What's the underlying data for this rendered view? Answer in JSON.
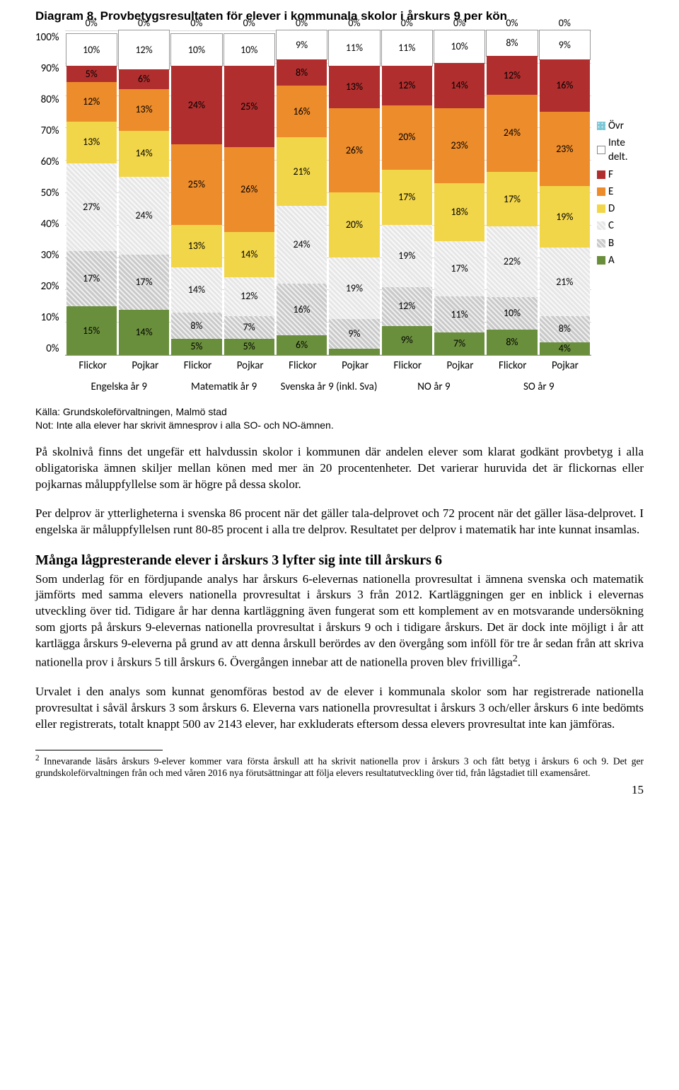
{
  "diagram": {
    "number_label": "Diagram 8.",
    "title_rest": " Provbetygsresultaten för elever i kommunala skolor i årskurs 9 per kön",
    "yaxis": [
      "100%",
      "90%",
      "80%",
      "70%",
      "60%",
      "50%",
      "40%",
      "30%",
      "20%",
      "10%",
      "0%"
    ],
    "legend": [
      {
        "label": "Övr",
        "color": "#7cc7d6",
        "pattern": "hatch-dots"
      },
      {
        "label": "Inte delt.",
        "color": "#ffffff",
        "pattern": "hatch-diag1",
        "border": "#888"
      },
      {
        "label": "F",
        "color": "#b02e2e"
      },
      {
        "label": "E",
        "color": "#ed8c2b"
      },
      {
        "label": "D",
        "color": "#f2d64a"
      },
      {
        "label": "C",
        "color": "#e6e6e6",
        "pattern": "hatch-diag1"
      },
      {
        "label": "B",
        "color": "#c9c9c9",
        "pattern": "hatch-diag1"
      },
      {
        "label": "A",
        "color": "#6a8f3c"
      }
    ],
    "grade_order": [
      "A",
      "B",
      "C",
      "D",
      "E",
      "F",
      "Inte delt.",
      "Övr"
    ],
    "grade_fill": {
      "A": {
        "color": "#6a8f3c"
      },
      "B": {
        "color": "#c9c9c9",
        "pattern": "hatch-diag1"
      },
      "C": {
        "color": "#e6e6e6",
        "pattern": "hatch-diag1"
      },
      "D": {
        "color": "#f2d64a"
      },
      "E": {
        "color": "#ed8c2b"
      },
      "F": {
        "color": "#b02e2e"
      },
      "Inte delt.": {
        "color": "#ffffff",
        "pattern": "hatch-diag1",
        "border": "#999"
      },
      "Övr": {
        "color": "#7cc7d6",
        "pattern": "hatch-dots"
      }
    },
    "subjects": [
      {
        "name": "Engelska år 9",
        "bars": [
          {
            "label": "Flickor",
            "segs": {
              "A": 15,
              "B": 17,
              "C": 27,
              "D": 13,
              "E": 12,
              "F": 5,
              "Inte delt.": 10,
              "Övr": 0
            },
            "labels": {
              "A": "15%",
              "B": "17%",
              "C": "27%",
              "D": "13%",
              "E": "12%",
              "F": "5%",
              "Inte delt.": "10%",
              "Övr": "0%"
            }
          },
          {
            "label": "Pojkar",
            "segs": {
              "A": 14,
              "B": 17,
              "C": 24,
              "D": 14,
              "E": 13,
              "F": 6,
              "Inte delt.": 12,
              "Övr": 0
            },
            "labels": {
              "A": "14%",
              "B": "17%",
              "C": "24%",
              "D": "14%",
              "E": "13%",
              "F": "6%",
              "Inte delt.": "12%",
              "Övr": "0%"
            }
          }
        ]
      },
      {
        "name": "Matematik år 9",
        "bars": [
          {
            "label": "Flickor",
            "segs": {
              "A": 5,
              "B": 8,
              "C": 14,
              "D": 13,
              "E": 25,
              "F": 24,
              "Inte delt.": 10,
              "Övr": 0
            },
            "labels": {
              "A": "5%",
              "B": "8%",
              "C": "14%",
              "D": "13%",
              "E": "25%",
              "F": "24%",
              "Inte delt.": "10%",
              "Övr": "0%"
            }
          },
          {
            "label": "Pojkar",
            "segs": {
              "A": 5,
              "B": 7,
              "C": 12,
              "D": 14,
              "E": 26,
              "F": 25,
              "Inte delt.": 10,
              "Övr": 0
            },
            "labels": {
              "A": "5%",
              "B": "7%",
              "C": "12%",
              "D": "14%",
              "E": "26%",
              "F": "25%",
              "Inte delt.": "10%",
              "Övr": "0%"
            }
          }
        ]
      },
      {
        "name": "Svenska år 9 (inkl. Sva)",
        "bars": [
          {
            "label": "Flickor",
            "segs": {
              "A": 6,
              "B": 16,
              "C": 24,
              "D": 21,
              "E": 16,
              "F": 8,
              "Inte delt.": 9,
              "Övr": 0
            },
            "labels": {
              "A": "6%",
              "B": "16%",
              "C": "24%",
              "D": "21%",
              "E": "16%",
              "F": "8%",
              "Inte delt.": "9%",
              "Övr": "0%"
            }
          },
          {
            "label": "Pojkar",
            "segs": {
              "A": 2,
              "B": 9,
              "C": 19,
              "D": 20,
              "E": 26,
              "F": 13,
              "Inte delt.": 11,
              "Övr": 0
            },
            "labels": {
              "A": "2%",
              "B": "9%",
              "C": "19%",
              "D": "20%",
              "E": "26%",
              "F": "13%",
              "Inte delt.": "11%",
              "Övr": "0%"
            }
          }
        ]
      },
      {
        "name": "NO år 9",
        "bars": [
          {
            "label": "Flickor",
            "segs": {
              "A": 9,
              "B": 12,
              "C": 19,
              "D": 17,
              "E": 20,
              "F": 12,
              "Inte delt.": 11,
              "Övr": 0
            },
            "labels": {
              "A": "9%",
              "B": "12%",
              "C": "19%",
              "D": "17%",
              "E": "20%",
              "F": "12%",
              "Inte delt.": "11%",
              "Övr": "0%"
            }
          },
          {
            "label": "Pojkar",
            "segs": {
              "A": 7,
              "B": 11,
              "C": 17,
              "D": 18,
              "E": 23,
              "F": 14,
              "Inte delt.": 10,
              "Övr": 0
            },
            "labels": {
              "A": "7%",
              "B": "11%",
              "C": "17%",
              "D": "18%",
              "E": "23%",
              "F": "14%",
              "Inte delt.": "10%",
              "Övr": "0%"
            }
          }
        ]
      },
      {
        "name": "SO år 9",
        "bars": [
          {
            "label": "Flickor",
            "segs": {
              "A": 8,
              "B": 10,
              "C": 22,
              "D": 17,
              "E": 24,
              "F": 12,
              "Inte delt.": 8,
              "Övr": 0
            },
            "labels": {
              "A": "8%",
              "B": "10%",
              "C": "22%",
              "D": "17%",
              "E": "24%",
              "F": "12%",
              "Inte delt.": "8%",
              "Övr": "0%"
            }
          },
          {
            "label": "Pojkar",
            "segs": {
              "A": 4,
              "B": 8,
              "C": 21,
              "D": 19,
              "E": 23,
              "F": 16,
              "Inte delt.": 9,
              "Övr": 0
            },
            "labels": {
              "A": "4%",
              "B": "8%",
              "C": "21%",
              "D": "19%",
              "E": "23%",
              "F": "16%",
              "Inte delt.": "9%",
              "Övr": "0%"
            }
          }
        ]
      }
    ]
  },
  "source": {
    "line1": "Källa: Grundskoleförvaltningen, Malmö stad",
    "line2": "Not: Inte alla elever har skrivit ämnesprov i alla SO- och NO-ämnen."
  },
  "para1": "På skolnivå finns det ungefär ett halvdussin skolor i kommunen där andelen elever som klarat godkänt provbetyg i alla obligatoriska ämnen skiljer mellan könen med mer än 20 procentenheter. Det varierar huruvida det är flickornas eller pojkarnas måluppfyllelse som är högre på dessa skolor.",
  "para2": "Per delprov är ytterligheterna i svenska 86 procent när det gäller tala-delprovet och 72 procent när det gäller läsa-delprovet. I engelska är måluppfyllelsen runt 80-85 procent i alla tre delprov. Resultatet per delprov i matematik har inte kunnat insamlas.",
  "heading": "Många lågpresterande elever i årskurs 3 lyfter sig inte till årskurs 6",
  "para3_prefix": "Som underlag för en fördjupande analys har årskurs 6-elevernas nationella provresultat i ämnena svenska och matematik jämförts med samma elevers nationella provresultat i årskurs 3 från 2012. Kartläggningen ger en inblick i elevernas utveckling över tid. Tidigare år har denna kartläggning även fungerat som ett komplement av en motsvarande undersökning som gjorts på årskurs 9-elevernas nationella provresultat i årskurs 9 och i tidigare årskurs. Det är dock inte möjligt i år att kartlägga årskurs 9-eleverna på grund av att denna årskull berördes av den övergång som inföll för tre år sedan från att skriva nationella prov i årskurs 5 till årskurs 6. Övergången innebar att de nationella proven blev frivilliga",
  "para3_sup": "2",
  "para3_suffix": ".",
  "para4": "Urvalet i den analys som kunnat genomföras bestod av de elever i kommunala skolor som har registrerade nationella provresultat i såväl årskurs 3 som årskurs 6. Eleverna vars nationella provresultat i årskurs 3 och/eller årskurs 6 inte bedömts eller registrerats, totalt knappt 500 av 2143 elever, har exkluderats eftersom dessa elevers provresultat inte kan jämföras.",
  "footnote": {
    "num": "2",
    "text": " Innevarande läsårs årskurs 9-elever kommer vara första årskull att ha skrivit nationella prov i årskurs 3 och fått betyg i årskurs 6 och 9. Det ger grundskoleförvaltningen från och med våren 2016 nya förutsättningar att följa elevers resultatutveckling över tid, från lågstadiet till examensåret."
  },
  "pagenum": "15"
}
